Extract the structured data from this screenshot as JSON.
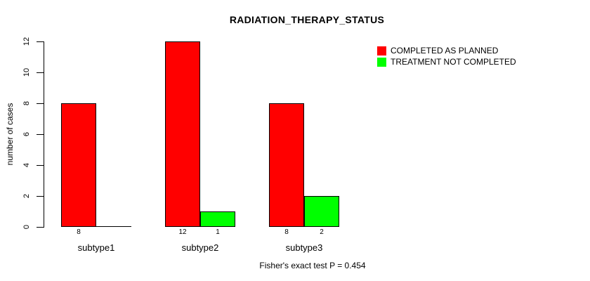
{
  "title": "RADIATION_THERAPY_STATUS",
  "ylabel": "number of cases",
  "caption": "Fisher's exact test P = 0.454",
  "chart_data": {
    "type": "bar",
    "title": "RADIATION_THERAPY_STATUS",
    "xlabel": "",
    "ylabel": "number of cases",
    "categories": [
      "subtype1",
      "subtype2",
      "subtype3"
    ],
    "series": [
      {
        "name": "COMPLETED AS PLANNED",
        "color": "#ff0000",
        "values": [
          8,
          12,
          8
        ]
      },
      {
        "name": "TREATMENT NOT COMPLETED",
        "color": "#00ff00",
        "values": [
          0,
          1,
          2
        ]
      }
    ],
    "bar_value_labels": [
      [
        "8",
        ""
      ],
      [
        "12",
        "1"
      ],
      [
        "8",
        "2"
      ]
    ],
    "yticks": [
      0,
      2,
      4,
      6,
      8,
      10,
      12
    ],
    "ylim": [
      0,
      12
    ],
    "grid": false,
    "legend_position": "top-right",
    "annotation": "Fisher's exact test P = 0.454"
  }
}
